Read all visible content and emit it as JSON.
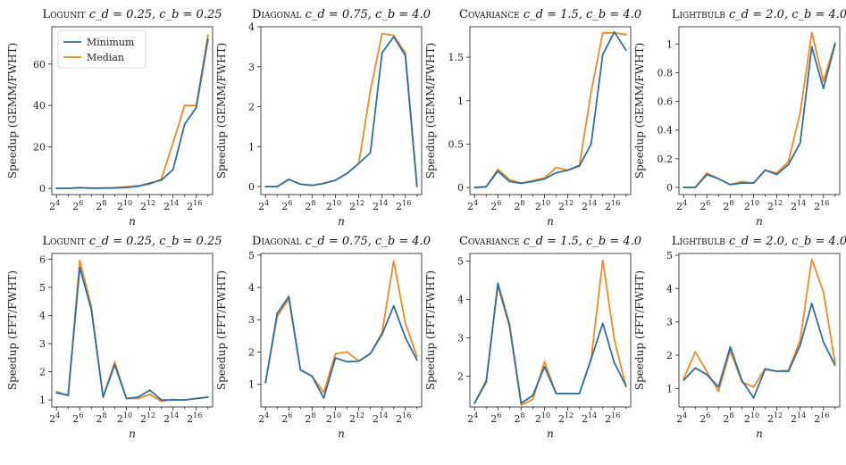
{
  "colors": {
    "minimum": "#2f6f9f",
    "median": "#f08a24",
    "axis": "#333333"
  },
  "legend": {
    "entries": [
      {
        "name": "Minimum",
        "color": "#2f6f9f"
      },
      {
        "name": "Median",
        "color": "#f08a24"
      }
    ],
    "placement": "top-left",
    "panel": 0
  },
  "chart_data": [
    {
      "type": "line",
      "title": "Logunit c_d = 0.25, c_b = 0.25",
      "title_main": "Logunit",
      "title_params": "c_d = 0.25, c_b = 0.25",
      "ylabel": "Speedup (GEMM/FWHT)",
      "xlabel": "n",
      "xlim": [
        3.6,
        17.4
      ],
      "ylim": [
        -3,
        78
      ],
      "yticks": [
        0,
        20,
        40,
        60
      ],
      "x": [
        4,
        5,
        6,
        7,
        8,
        9,
        10,
        11,
        12,
        13,
        14,
        15,
        16,
        17
      ],
      "series": [
        {
          "name": "Minimum",
          "values": [
            0.0,
            0.0,
            0.3,
            0.1,
            0.1,
            0.2,
            0.4,
            1.0,
            2.5,
            4.0,
            9.0,
            31.0,
            39.0,
            72.0
          ]
        },
        {
          "name": "Median",
          "values": [
            0.0,
            0.0,
            0.3,
            0.1,
            0.2,
            0.3,
            0.8,
            1.2,
            2.0,
            4.5,
            22.0,
            40.0,
            40.0,
            74.0
          ]
        }
      ]
    },
    {
      "type": "line",
      "title": "Diagonal c_d = 0.75, c_b = 4.0",
      "title_main": "Diagonal",
      "title_params": "c_d = 0.75, c_b = 4.0",
      "ylabel": "Speedup (GEMM/FWHT)",
      "xlabel": "n",
      "xlim": [
        3.6,
        17.4
      ],
      "ylim": [
        -0.2,
        4.0
      ],
      "yticks": [
        0,
        1,
        2,
        3,
        4
      ],
      "x": [
        4,
        5,
        6,
        7,
        8,
        9,
        10,
        11,
        12,
        13,
        14,
        15,
        16,
        17
      ],
      "series": [
        {
          "name": "Minimum",
          "values": [
            0.0,
            0.0,
            0.18,
            0.06,
            0.03,
            0.08,
            0.16,
            0.33,
            0.58,
            0.85,
            3.35,
            3.75,
            3.28,
            0
          ]
        },
        {
          "name": "Median",
          "values": [
            0.0,
            0.0,
            0.18,
            0.06,
            0.03,
            0.08,
            0.16,
            0.33,
            0.58,
            2.4,
            3.83,
            3.78,
            3.35,
            0
          ]
        }
      ]
    },
    {
      "type": "line",
      "title": "Covariance c_d = 1.5, c_b = 4.0",
      "title_main": "Covariance",
      "title_params": "c_d = 1.5, c_b = 4.0",
      "ylabel": "Speedup (GEMM/FWHT)",
      "xlabel": "n",
      "xlim": [
        3.6,
        17.4
      ],
      "ylim": [
        -0.08,
        1.85
      ],
      "yticks": [
        0.0,
        0.5,
        1.0,
        1.5
      ],
      "x": [
        4,
        5,
        6,
        7,
        8,
        9,
        10,
        11,
        12,
        13,
        14,
        15,
        16,
        17
      ],
      "series": [
        {
          "name": "Minimum",
          "values": [
            0.0,
            0.01,
            0.19,
            0.07,
            0.05,
            0.07,
            0.1,
            0.17,
            0.2,
            0.25,
            0.5,
            1.53,
            1.79,
            1.58
          ]
        },
        {
          "name": "Median",
          "values": [
            0.0,
            0.01,
            0.21,
            0.09,
            0.05,
            0.08,
            0.11,
            0.23,
            0.2,
            0.26,
            1.1,
            1.78,
            1.78,
            1.76
          ]
        }
      ]
    },
    {
      "type": "line",
      "title": "Lightbulb c_d = 2.0, c_b = 4.0",
      "title_main": "Lightbulb",
      "title_params": "c_d = 2.0, c_b = 4.0",
      "ylabel": "Speedup (GEMM/FWHT)",
      "xlabel": "n",
      "xlim": [
        3.6,
        17.4
      ],
      "ylim": [
        -0.05,
        1.12
      ],
      "yticks": [
        0.0,
        0.2,
        0.4,
        0.6,
        0.8,
        1.0
      ],
      "x": [
        4,
        5,
        6,
        7,
        8,
        9,
        10,
        11,
        12,
        13,
        14,
        15,
        16,
        17
      ],
      "series": [
        {
          "name": "Minimum",
          "values": [
            0.0,
            0.0,
            0.09,
            0.06,
            0.02,
            0.03,
            0.03,
            0.12,
            0.09,
            0.16,
            0.31,
            0.98,
            0.69,
            1.0
          ]
        },
        {
          "name": "Median",
          "values": [
            0.0,
            0.0,
            0.1,
            0.06,
            0.02,
            0.04,
            0.03,
            0.12,
            0.1,
            0.18,
            0.52,
            1.08,
            0.74,
            1.01
          ]
        }
      ]
    },
    {
      "type": "line",
      "title": "Logunit c_d = 0.25, c_b = 0.25",
      "title_main": "Logunit",
      "title_params": "c_d = 0.25, c_b = 0.25",
      "ylabel": "Speedup (FFT/FWHT)",
      "xlabel": "n",
      "xlim": [
        3.6,
        17.4
      ],
      "ylim": [
        0.75,
        6.2
      ],
      "yticks": [
        1,
        2,
        3,
        4,
        5,
        6
      ],
      "x": [
        4,
        5,
        6,
        7,
        8,
        9,
        10,
        11,
        12,
        13,
        14,
        15,
        16,
        17
      ],
      "series": [
        {
          "name": "Minimum",
          "values": [
            1.25,
            1.17,
            5.7,
            4.2,
            1.1,
            2.25,
            1.05,
            1.1,
            1.35,
            1.0,
            1.0,
            1.0,
            1.05,
            1.1
          ]
        },
        {
          "name": "Median",
          "values": [
            1.3,
            1.15,
            5.95,
            4.3,
            1.1,
            2.35,
            1.05,
            1.05,
            1.2,
            0.95,
            1.02,
            1.0,
            1.05,
            1.1
          ]
        }
      ]
    },
    {
      "type": "line",
      "title": "Diagonal c_d = 0.75, c_b = 4.0",
      "title_main": "Diagonal",
      "title_params": "c_d = 0.75, c_b = 4.0",
      "ylabel": "Speedup (FFT/FWHT)",
      "xlabel": "n",
      "xlim": [
        3.6,
        17.4
      ],
      "ylim": [
        0.3,
        5.05
      ],
      "yticks": [
        1,
        2,
        3,
        4,
        5
      ],
      "x": [
        4,
        5,
        6,
        7,
        8,
        9,
        10,
        11,
        12,
        13,
        14,
        15,
        16,
        17
      ],
      "series": [
        {
          "name": "Minimum",
          "values": [
            1.05,
            3.2,
            3.72,
            1.45,
            1.25,
            0.58,
            1.82,
            1.7,
            1.72,
            1.95,
            2.55,
            3.43,
            2.45,
            1.75
          ]
        },
        {
          "name": "Median",
          "values": [
            1.05,
            3.1,
            3.65,
            1.45,
            1.25,
            0.75,
            1.95,
            2.0,
            1.72,
            1.95,
            2.6,
            4.82,
            2.9,
            1.85
          ]
        }
      ]
    },
    {
      "type": "line",
      "title": "Covariance c_d = 1.5, c_b = 4.0",
      "title_main": "Covariance",
      "title_params": "c_d = 1.5, c_b = 4.0",
      "ylabel": "Speedup (FFT/FWHT)",
      "xlabel": "n",
      "xlim": [
        3.6,
        17.4
      ],
      "ylim": [
        1.2,
        5.2
      ],
      "yticks": [
        2,
        3,
        4,
        5
      ],
      "x": [
        4,
        5,
        6,
        7,
        8,
        9,
        10,
        11,
        12,
        13,
        14,
        15,
        16,
        17
      ],
      "series": [
        {
          "name": "Minimum",
          "values": [
            1.3,
            1.85,
            4.42,
            3.35,
            1.3,
            1.5,
            2.25,
            1.55,
            1.55,
            1.55,
            2.45,
            3.38,
            2.35,
            1.75
          ]
        },
        {
          "name": "Median",
          "values": [
            1.3,
            1.9,
            4.35,
            3.3,
            1.25,
            1.4,
            2.38,
            1.55,
            1.55,
            1.55,
            2.45,
            5.02,
            2.95,
            1.72
          ]
        }
      ]
    },
    {
      "type": "line",
      "title": "Lightbulb c_d = 2.0, c_b = 4.0",
      "title_main": "Lightbulb",
      "title_params": "c_d = 2.0, c_b = 4.0",
      "ylabel": "Speedup (FFT/FWHT)",
      "xlabel": "n",
      "xlim": [
        3.6,
        17.4
      ],
      "ylim": [
        0.45,
        5.05
      ],
      "yticks": [
        1,
        2,
        3,
        4,
        5
      ],
      "x": [
        4,
        5,
        6,
        7,
        8,
        9,
        10,
        11,
        12,
        13,
        14,
        15,
        16,
        17
      ],
      "series": [
        {
          "name": "Minimum",
          "values": [
            1.25,
            1.62,
            1.42,
            1.05,
            2.25,
            1.25,
            0.72,
            1.58,
            1.52,
            1.52,
            2.3,
            3.55,
            2.4,
            1.7
          ]
        },
        {
          "name": "Median",
          "values": [
            1.3,
            2.1,
            1.5,
            0.92,
            2.15,
            1.2,
            1.05,
            1.6,
            1.52,
            1.55,
            2.45,
            4.88,
            3.9,
            1.75
          ]
        }
      ]
    }
  ]
}
